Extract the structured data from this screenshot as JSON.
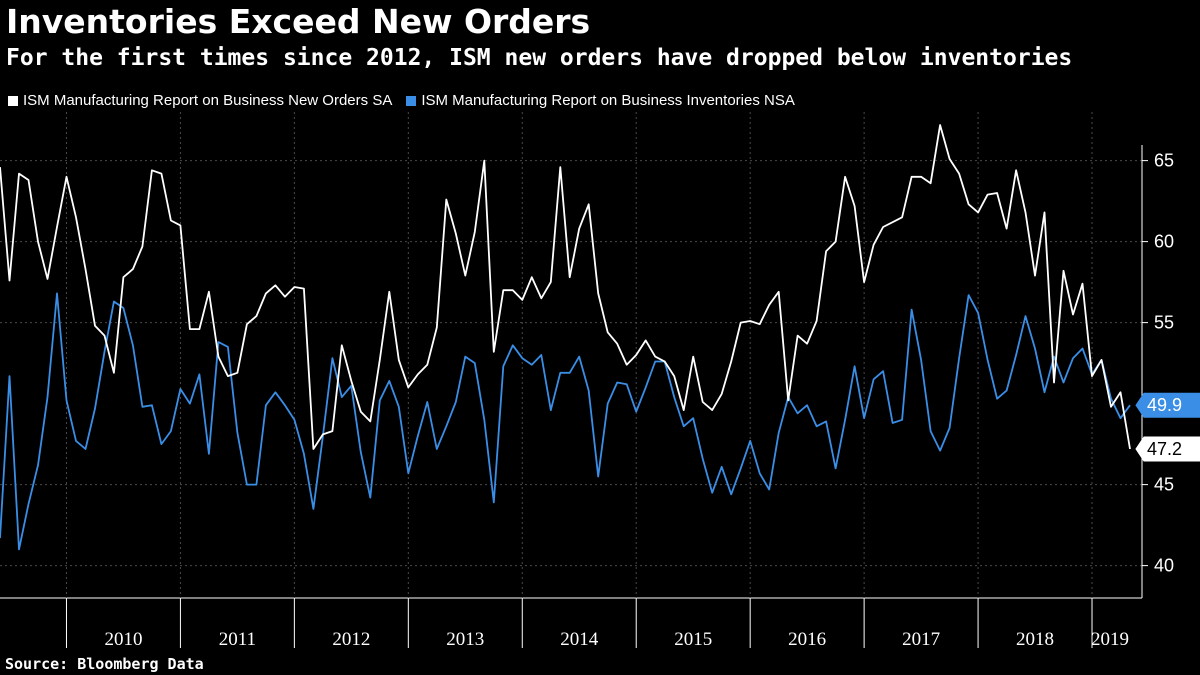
{
  "title": "Inventories Exceed New Orders",
  "subtitle": "For the first times since 2012, ISM new orders have dropped below inventories",
  "source": "Source: Bloomberg Data",
  "colors": {
    "background": "#000000",
    "new_orders": "#ffffff",
    "inventories": "#3a8ee6",
    "grid": "#4a4a4a"
  },
  "chart_data": {
    "type": "line",
    "x_start": "2009-06",
    "x_end": "2019-06",
    "y_ticks": [
      40,
      45,
      55,
      60,
      65
    ],
    "ylim": [
      38,
      68
    ],
    "year_labels": [
      "2010",
      "2011",
      "2012",
      "2013",
      "2014",
      "2015",
      "2016",
      "2017",
      "2018",
      "2019"
    ],
    "series": [
      {
        "name": "ISM Manufacturing Report on Business New Orders SA",
        "end_label": "47.2",
        "values": [
          64.6,
          57.6,
          64.2,
          63.8,
          60.0,
          57.7,
          60.9,
          64.0,
          61.5,
          58.3,
          54.8,
          54.2,
          51.9,
          57.8,
          58.3,
          59.7,
          64.4,
          64.2,
          61.3,
          61.0,
          54.6,
          54.6,
          56.9,
          52.9,
          51.7,
          51.9,
          54.9,
          55.4,
          56.8,
          57.3,
          56.6,
          57.2,
          57.1,
          47.2,
          48.1,
          48.3,
          53.6,
          51.4,
          49.5,
          48.9,
          52.7,
          56.9,
          52.7,
          51.0,
          51.8,
          52.4,
          54.7,
          62.6,
          60.5,
          57.9,
          60.6,
          65.0,
          53.2,
          57.0,
          57.0,
          56.4,
          57.8,
          56.5,
          57.5,
          64.6,
          57.8,
          60.8,
          62.3,
          56.8,
          54.4,
          53.7,
          52.4,
          53.0,
          53.9,
          52.9,
          52.6,
          51.7,
          49.6,
          52.9,
          50.1,
          49.6,
          50.6,
          52.6,
          55.0,
          55.1,
          54.9,
          56.1,
          56.9,
          50.2,
          54.2,
          53.7,
          55.1,
          59.4,
          60.0,
          64.0,
          62.2,
          57.5,
          59.8,
          60.9,
          61.2,
          61.5,
          64.0,
          64.0,
          63.6,
          67.2,
          65.1,
          64.2,
          62.3,
          61.8,
          62.9,
          63.0,
          60.8,
          64.4,
          61.8,
          57.9,
          61.8,
          51.3,
          58.2,
          55.5,
          57.4,
          51.7,
          52.7,
          49.8,
          50.7,
          47.2
        ]
      },
      {
        "name": "ISM Manufacturing Report on Business Inventories NSA",
        "end_label": "49.9",
        "values": [
          41.7,
          51.7,
          41.0,
          43.8,
          46.2,
          50.4,
          56.8,
          50.2,
          47.7,
          47.2,
          49.7,
          53.2,
          56.3,
          55.9,
          53.6,
          49.8,
          49.9,
          47.5,
          48.3,
          50.9,
          50.0,
          51.8,
          46.9,
          53.8,
          53.5,
          48.2,
          45.0,
          45.0,
          49.9,
          50.7,
          49.9,
          49.0,
          46.9,
          43.5,
          48.0,
          52.8,
          50.4,
          51.1,
          47.0,
          44.2,
          50.2,
          51.4,
          49.8,
          45.7,
          48.0,
          50.1,
          47.2,
          48.6,
          50.1,
          52.9,
          52.5,
          49.0,
          43.9,
          52.3,
          53.6,
          52.8,
          52.4,
          53.0,
          49.6,
          51.9,
          51.9,
          52.9,
          50.8,
          45.5,
          50.0,
          51.3,
          51.2,
          49.5,
          51.0,
          52.6,
          52.6,
          50.4,
          48.6,
          49.1,
          46.6,
          44.5,
          46.1,
          44.4,
          46.0,
          47.7,
          45.7,
          44.7,
          48.2,
          50.4,
          49.4,
          49.9,
          48.6,
          48.9,
          46.0,
          49.0,
          52.3,
          49.1,
          51.5,
          52.0,
          48.8,
          49.0,
          55.8,
          52.7,
          48.3,
          47.1,
          48.5,
          52.8,
          56.7,
          55.6,
          52.7,
          50.3,
          50.8,
          53.0,
          55.4,
          53.4,
          50.7,
          52.9,
          51.3,
          52.8,
          53.4,
          51.8,
          52.7,
          50.3,
          49.1,
          49.9
        ]
      }
    ]
  }
}
